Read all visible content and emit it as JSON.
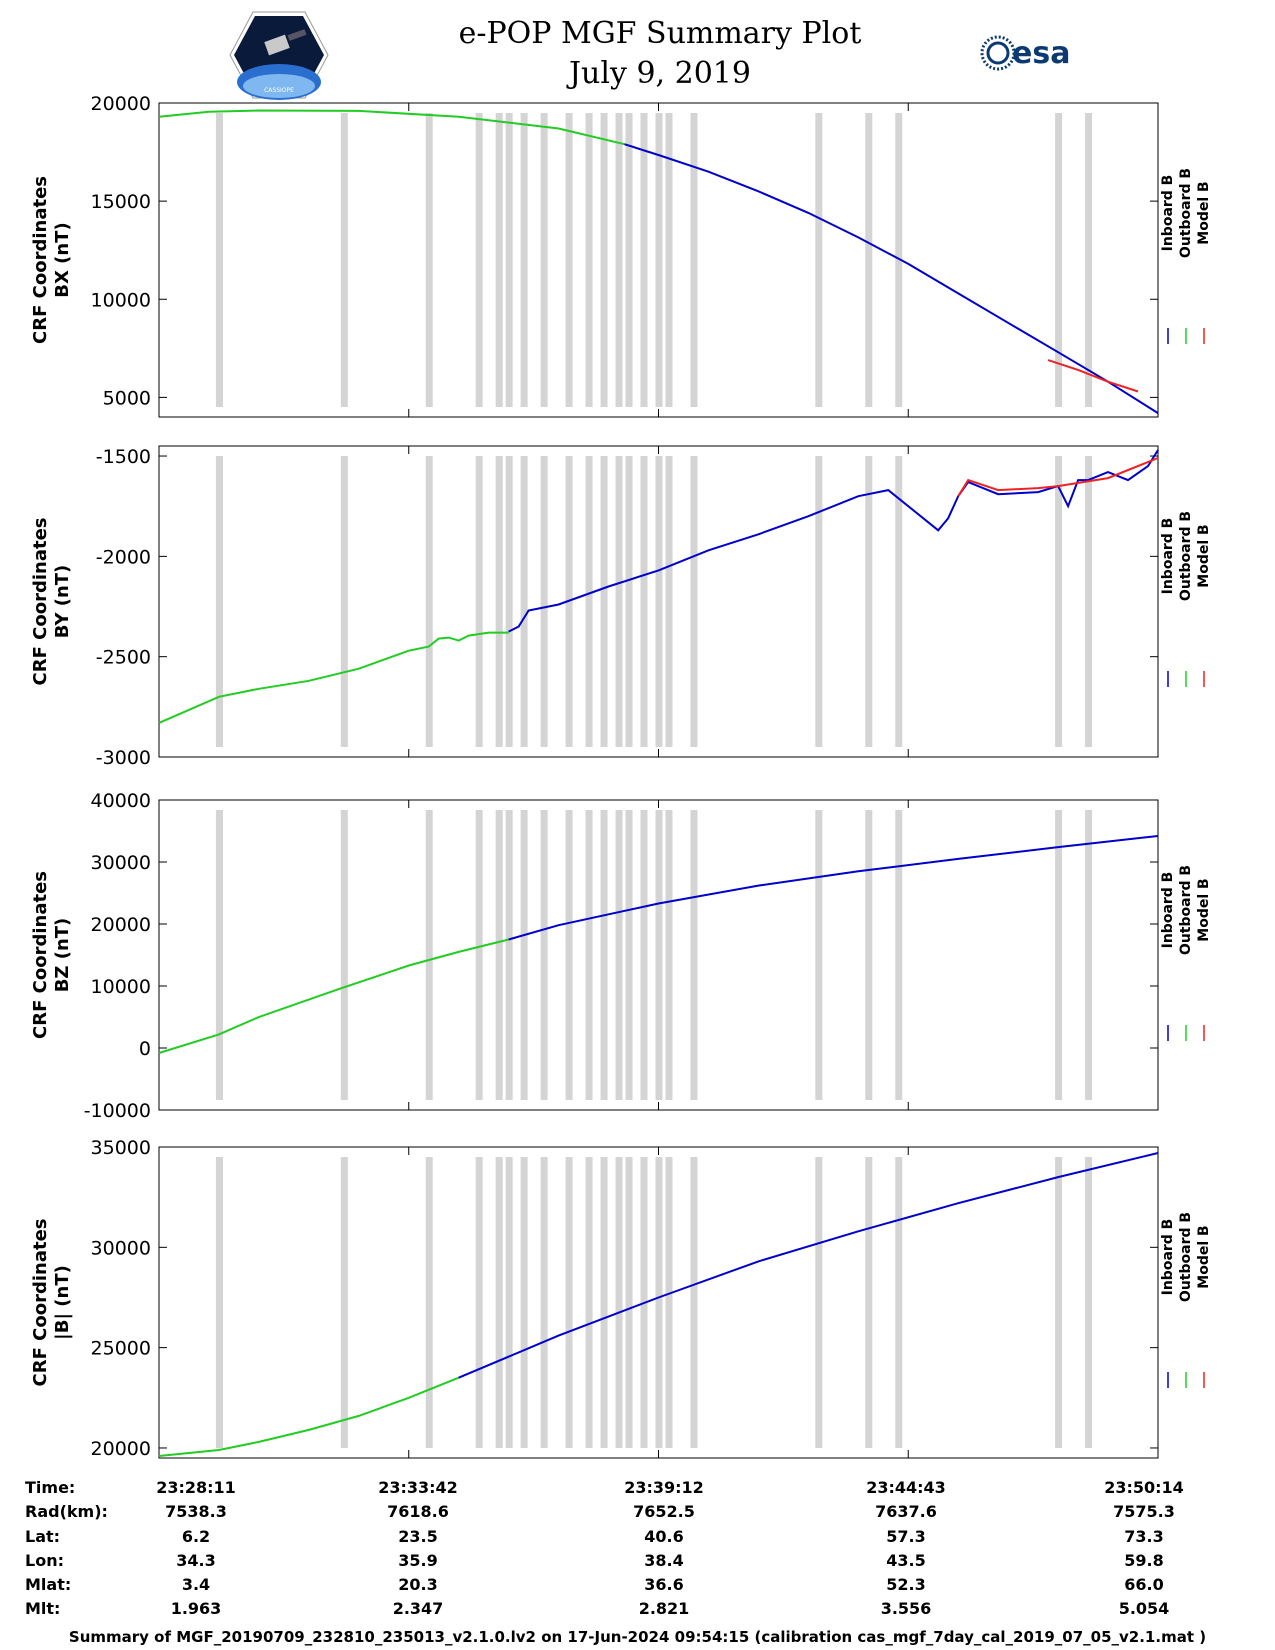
{
  "header": {
    "title_line1": "e-POP MGF Summary Plot",
    "title_line2": "July 9, 2019",
    "logo_left_text": "CASSIOPE",
    "logo_right_text": "esa"
  },
  "colors": {
    "inboard": "#0000cc",
    "outboard": "#22cc22",
    "model": "#ee2222",
    "gap_band": "#d4d4d4"
  },
  "chart_data": [
    {
      "type": "line",
      "ylabel_line1": "CRF Coordinates",
      "ylabel_line2": "BX (nT)",
      "ylim": [
        4000,
        20000
      ],
      "yticks": [
        5000,
        10000,
        15000,
        20000
      ],
      "ytick_labels": [
        "5000",
        "10000",
        "15000",
        "20000"
      ],
      "legend": [
        "Inboard B",
        "Outboard B",
        "Model B"
      ],
      "series": [
        {
          "name": "Outboard B",
          "color_key": "outboard",
          "x": [
            0,
            0.05,
            0.1,
            0.2,
            0.3,
            0.4,
            0.466
          ],
          "values": [
            19300,
            19550,
            19620,
            19600,
            19300,
            18700,
            17900
          ]
        },
        {
          "name": "Inboard B",
          "color_key": "inboard",
          "x": [
            0.466,
            0.5,
            0.55,
            0.6,
            0.65,
            0.7,
            0.75,
            0.8,
            0.85,
            0.9,
            0.95,
            1.0
          ],
          "values": [
            17900,
            17350,
            16500,
            15500,
            14400,
            13150,
            11800,
            10300,
            8800,
            7300,
            5800,
            4200
          ]
        },
        {
          "name": "Model B",
          "color_key": "model",
          "x": [
            0.89,
            0.92,
            0.95,
            0.98
          ],
          "values": [
            6900,
            6400,
            5800,
            5300
          ]
        }
      ]
    },
    {
      "type": "line",
      "ylabel_line1": "CRF Coordinates",
      "ylabel_line2": "BY (nT)",
      "ylim": [
        -3000,
        -1450
      ],
      "yticks": [
        -3000,
        -2500,
        -2000,
        -1500
      ],
      "ytick_labels": [
        "-3000",
        "-2500",
        "-2000",
        "-1500"
      ],
      "legend": [
        "Inboard B",
        "Outboard B",
        "Model B"
      ],
      "series": [
        {
          "name": "Outboard B",
          "color_key": "outboard",
          "x": [
            0,
            0.06,
            0.1,
            0.15,
            0.2,
            0.25,
            0.27,
            0.28,
            0.29,
            0.3,
            0.31,
            0.33,
            0.35
          ],
          "values": [
            -2830,
            -2700,
            -2660,
            -2620,
            -2560,
            -2470,
            -2450,
            -2410,
            -2405,
            -2420,
            -2395,
            -2380,
            -2380
          ]
        },
        {
          "name": "Inboard B",
          "color_key": "inboard",
          "x": [
            0.35,
            0.36,
            0.37,
            0.4,
            0.45,
            0.5,
            0.55,
            0.6,
            0.65,
            0.7,
            0.73,
            0.78,
            0.79,
            0.8,
            0.81,
            0.84,
            0.88,
            0.9,
            0.91,
            0.92,
            0.93,
            0.95,
            0.97,
            0.99,
            1.0
          ],
          "values": [
            -2375,
            -2350,
            -2270,
            -2240,
            -2150,
            -2070,
            -1970,
            -1890,
            -1800,
            -1700,
            -1670,
            -1870,
            -1810,
            -1700,
            -1630,
            -1690,
            -1680,
            -1650,
            -1750,
            -1620,
            -1620,
            -1580,
            -1620,
            -1550,
            -1470
          ]
        },
        {
          "name": "Model B",
          "color_key": "model",
          "x": [
            0.8,
            0.81,
            0.84,
            0.88,
            0.9,
            0.95,
            1.0
          ],
          "values": [
            -1700,
            -1620,
            -1670,
            -1660,
            -1650,
            -1610,
            -1510
          ]
        }
      ]
    },
    {
      "type": "line",
      "ylabel_line1": "CRF Coordinates",
      "ylabel_line2": "BZ (nT)",
      "ylim": [
        -10000,
        40000
      ],
      "yticks": [
        -10000,
        0,
        10000,
        20000,
        30000,
        40000
      ],
      "ytick_labels": [
        "-10000",
        "0",
        "10000",
        "20000",
        "30000",
        "40000"
      ],
      "legend": [
        "Inboard B",
        "Outboard B",
        "Model B"
      ],
      "series": [
        {
          "name": "Outboard B",
          "color_key": "outboard",
          "x": [
            0,
            0.06,
            0.1,
            0.18,
            0.25,
            0.3,
            0.35
          ],
          "values": [
            -800,
            2200,
            5000,
            9500,
            13300,
            15500,
            17500
          ]
        },
        {
          "name": "Inboard B",
          "color_key": "inboard",
          "x": [
            0.35,
            0.4,
            0.5,
            0.6,
            0.7,
            0.8,
            0.9,
            1.0
          ],
          "values": [
            17500,
            19800,
            23300,
            26200,
            28500,
            30500,
            32400,
            34200
          ]
        }
      ]
    },
    {
      "type": "line",
      "ylabel_line1": "CRF Coordinates",
      "ylabel_line2": "|B| (nT)",
      "ylim": [
        19500,
        35000
      ],
      "yticks": [
        20000,
        25000,
        30000,
        35000
      ],
      "ytick_labels": [
        "20000",
        "25000",
        "30000",
        "35000"
      ],
      "legend": [
        "Inboard B",
        "Outboard B",
        "Model B"
      ],
      "series": [
        {
          "name": "Outboard B",
          "color_key": "outboard",
          "x": [
            0,
            0.06,
            0.1,
            0.15,
            0.2,
            0.25,
            0.3
          ],
          "values": [
            19600,
            19900,
            20300,
            20900,
            21600,
            22500,
            23500
          ]
        },
        {
          "name": "Inboard B",
          "color_key": "inboard",
          "x": [
            0.3,
            0.4,
            0.5,
            0.6,
            0.7,
            0.8,
            0.9,
            1.0
          ],
          "values": [
            23500,
            25600,
            27500,
            29300,
            30800,
            32200,
            33500,
            34700
          ]
        }
      ]
    }
  ],
  "gap_bands_x": [
    0.06,
    0.185,
    0.27,
    0.32,
    0.34,
    0.35,
    0.365,
    0.385,
    0.41,
    0.43,
    0.445,
    0.46,
    0.47,
    0.485,
    0.5,
    0.51,
    0.535,
    0.66,
    0.71,
    0.74,
    0.9,
    0.93
  ],
  "time_table": {
    "row_labels": [
      "Time:",
      "Rad(km):",
      "Lat:",
      "Lon:",
      "Mlat:",
      "Mlt:"
    ],
    "columns": [
      [
        "23:28:11",
        "7538.3",
        "6.2",
        "34.3",
        "3.4",
        "1.963"
      ],
      [
        "23:33:42",
        "7618.6",
        "23.5",
        "35.9",
        "20.3",
        "2.347"
      ],
      [
        "23:39:12",
        "7652.5",
        "40.6",
        "38.4",
        "36.6",
        "2.821"
      ],
      [
        "23:44:43",
        "7637.6",
        "57.3",
        "43.5",
        "52.3",
        "3.556"
      ],
      [
        "23:50:14",
        "7575.3",
        "73.3",
        "59.8",
        "66.0",
        "5.054"
      ]
    ]
  },
  "footer": "Summary of MGF_20190709_232810_235013_v2.1.0.lv2 on 17-Jun-2024 09:54:15 (calibration cas_mgf_7day_cal_2019_07_05_v2.1.mat )"
}
